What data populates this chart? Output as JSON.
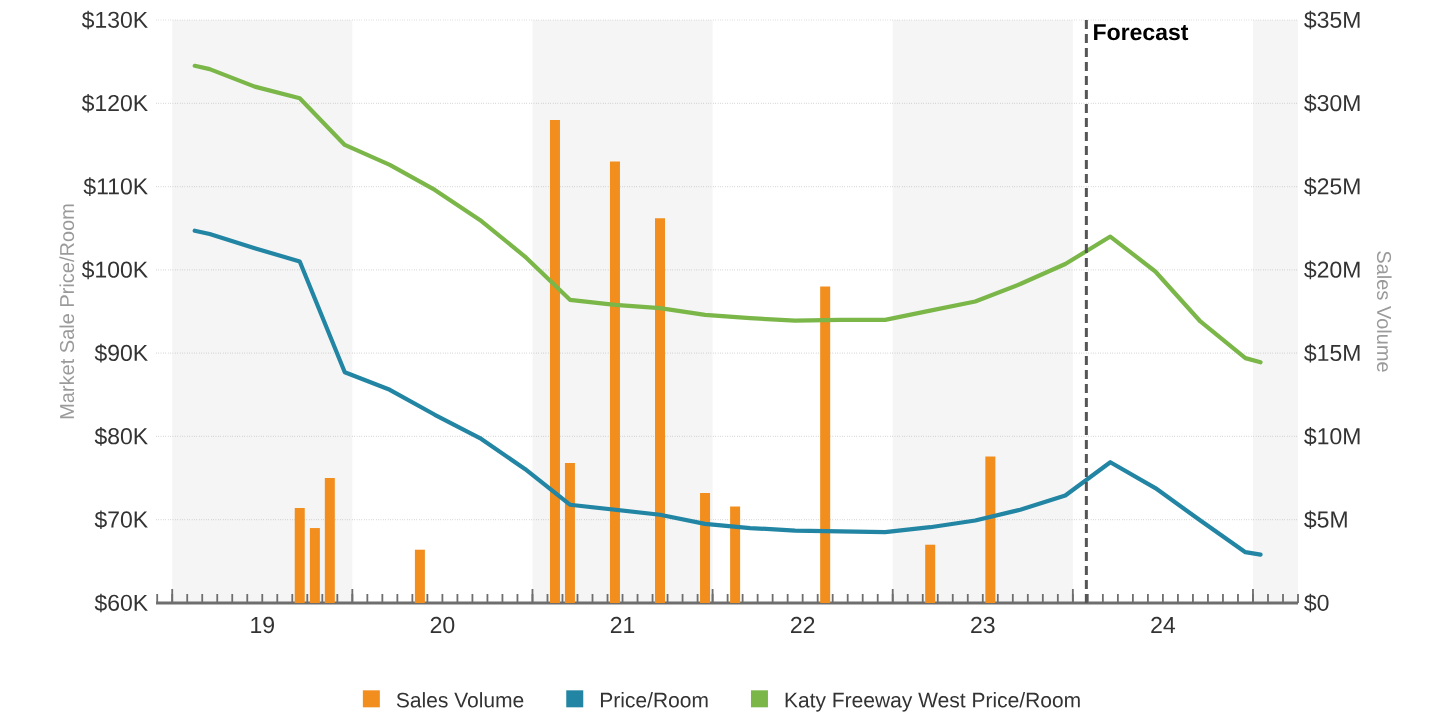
{
  "chart_data": {
    "type": "line",
    "ylabel": "Market Sale Price/Room",
    "y2label": "Sales Volume",
    "xlim": [
      18.41,
      24.75
    ],
    "xticks": [
      {
        "value": 18.5,
        "label": null
      },
      {
        "value": 19.5,
        "label": null
      },
      {
        "value": 20.5,
        "label": null
      },
      {
        "value": 21.5,
        "label": null
      },
      {
        "value": 22.5,
        "label": null
      },
      {
        "value": 23.5,
        "label": null
      },
      {
        "value": 24.5,
        "label": null
      },
      19,
      20,
      21,
      22,
      23,
      24
    ],
    "ylim": [
      60,
      130
    ],
    "yticks": [
      {
        "value": 60,
        "label": "$60K"
      },
      {
        "value": 70,
        "label": "$70K"
      },
      {
        "value": 80,
        "label": "$80K"
      },
      {
        "value": 90,
        "label": "$90K"
      },
      {
        "value": 100,
        "label": "$100K"
      },
      {
        "value": 110,
        "label": "$110K"
      },
      {
        "value": 120,
        "label": "$120K"
      },
      {
        "value": 130,
        "label": "$130K"
      }
    ],
    "y2lim": [
      0,
      35
    ],
    "y2ticks": [
      {
        "value": 0,
        "label": "$0"
      },
      {
        "value": 5,
        "label": "$5M"
      },
      {
        "value": 10,
        "label": "$10M"
      },
      {
        "value": 15,
        "label": "$15M"
      },
      {
        "value": 20,
        "label": "$20M"
      },
      {
        "value": 25,
        "label": "$25M"
      },
      {
        "value": 30,
        "label": "$30M"
      },
      {
        "value": 35,
        "label": "$35M"
      }
    ],
    "grid": "y",
    "legend": "bottom",
    "series": [
      {
        "name": "Sales Volume",
        "type": "bar",
        "axis": "y2",
        "color": "#f28e1e",
        "x": [
          19.208,
          19.292,
          19.375,
          19.875,
          20.625,
          20.708,
          20.958,
          21.208,
          21.458,
          21.625,
          22.125,
          22.708,
          23.042
        ],
        "values": [
          5.7,
          4.5,
          7.5,
          3.2,
          29.0,
          8.4,
          26.5,
          23.1,
          6.6,
          5.8,
          19.0,
          3.5,
          8.8
        ]
      },
      {
        "name": "Price/Room",
        "color": "#2185a3",
        "x": [
          18.625,
          18.708,
          18.958,
          19.208,
          19.458,
          19.708,
          19.958,
          20.208,
          20.458,
          20.708,
          20.958,
          21.208,
          21.458,
          21.708,
          21.958,
          22.208,
          22.458,
          22.708,
          22.958,
          23.208,
          23.458,
          23.708,
          23.958,
          24.208,
          24.458,
          24.542
        ],
        "values": [
          104.7,
          104.3,
          102.6,
          101.0,
          87.7,
          85.6,
          82.6,
          79.8,
          76.1,
          71.8,
          71.2,
          70.6,
          69.5,
          69.0,
          68.7,
          68.6,
          68.5,
          69.1,
          69.9,
          71.2,
          72.9,
          76.9,
          73.8,
          69.9,
          66.1,
          65.8
        ]
      },
      {
        "name": "Katy Freeway West Price/Room",
        "color": "#7ab648",
        "x": [
          18.625,
          18.708,
          18.958,
          19.208,
          19.458,
          19.708,
          19.958,
          20.208,
          20.458,
          20.708,
          20.958,
          21.208,
          21.458,
          21.708,
          21.958,
          22.208,
          22.458,
          22.708,
          22.958,
          23.208,
          23.458,
          23.708,
          23.958,
          24.208,
          24.458,
          24.542
        ],
        "values": [
          124.5,
          124.1,
          122.0,
          120.6,
          115.0,
          112.6,
          109.6,
          106.0,
          101.6,
          96.4,
          95.8,
          95.4,
          94.6,
          94.2,
          93.9,
          94.0,
          94.0,
          95.1,
          96.2,
          98.3,
          100.7,
          104.0,
          99.8,
          93.8,
          89.4,
          88.9
        ]
      }
    ],
    "ref_lines": [
      {
        "axis": "x",
        "value": 23.575,
        "label": "Forecast",
        "line_style": "dashed",
        "color": "#555555"
      }
    ],
    "bands": [
      {
        "axis": "x",
        "from": 18.5,
        "to": 19.5,
        "color": "#f5f5f5"
      },
      {
        "axis": "x",
        "from": 20.5,
        "to": 21.5,
        "color": "#f5f5f5"
      },
      {
        "axis": "x",
        "from": 22.5,
        "to": 23.5,
        "color": "#f5f5f5"
      },
      {
        "axis": "x",
        "from": 24.5,
        "to": 24.75,
        "color": "#f5f5f5"
      }
    ]
  }
}
